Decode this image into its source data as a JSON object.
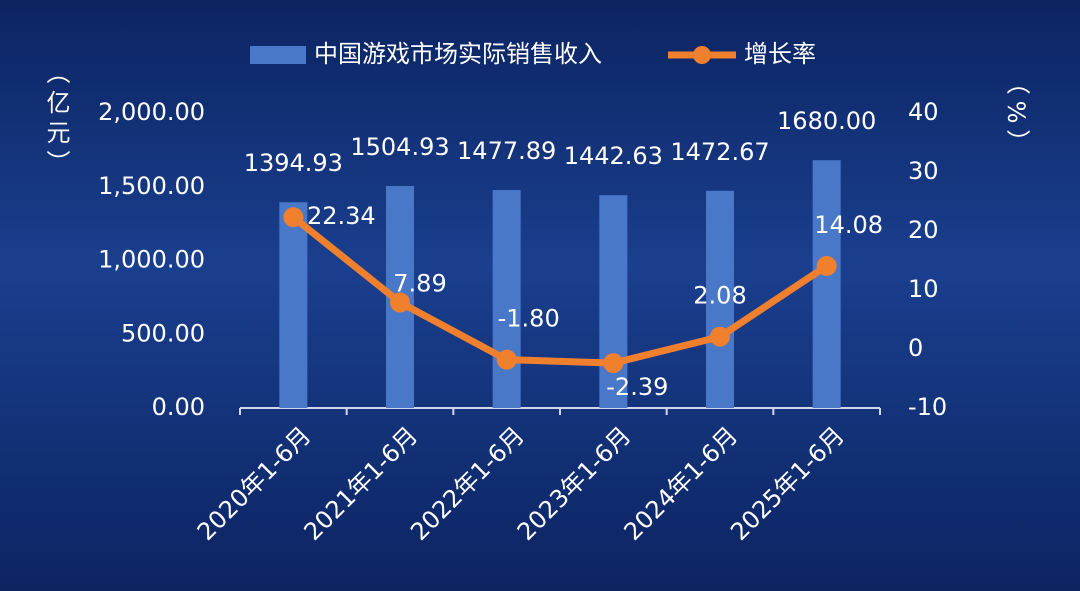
{
  "chart_data": {
    "type": "bar_line",
    "categories": [
      "2020年1-6月",
      "2021年1-6月",
      "2022年1-6月",
      "2023年1-6月",
      "2024年1-6月",
      "2025年1-6月"
    ],
    "series": [
      {
        "name": "中国游戏市场实际销售收入",
        "type": "bar",
        "color": "#4a78c8",
        "values": [
          1394.93,
          1504.93,
          1477.89,
          1442.63,
          1472.67,
          1680.0
        ],
        "value_labels": [
          "1394.93",
          "1504.93",
          "1477.89",
          "1442.63",
          "1472.67",
          "1680.00"
        ]
      },
      {
        "name": "增长率",
        "type": "line",
        "axis": "y2",
        "color": "#f07f2e",
        "values": [
          22.34,
          7.89,
          -1.8,
          -2.39,
          2.08,
          14.08
        ],
        "value_labels": [
          "22.34",
          "7.89",
          "-1.80",
          "-2.39",
          "2.08",
          "14.08"
        ]
      }
    ],
    "y_label": "（亿元）",
    "y2_label": "（%）",
    "ylim": [
      0,
      2000
    ],
    "yticks": [
      {
        "value": 0,
        "label": "0.00"
      },
      {
        "value": 500,
        "label": "500.00"
      },
      {
        "value": 1000,
        "label": "1,000.00"
      },
      {
        "value": 1500,
        "label": "1,500.00"
      },
      {
        "value": 2000,
        "label": "2,000.00"
      }
    ],
    "y2lim": [
      -10,
      40
    ],
    "y2ticks": [
      -10,
      0,
      10,
      20,
      30,
      40
    ],
    "legend": "top"
  }
}
